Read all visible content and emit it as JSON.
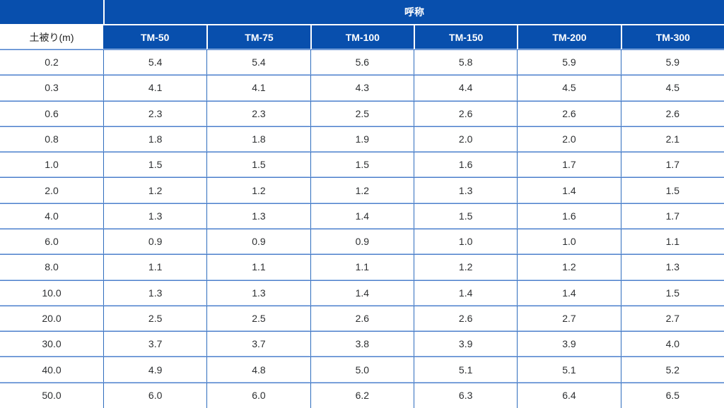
{
  "table": {
    "group_header": "呼称",
    "row_header_label": "土被り(m)",
    "columns": [
      "TM-50",
      "TM-75",
      "TM-100",
      "TM-150",
      "TM-200",
      "TM-300"
    ],
    "rows": [
      {
        "depth": "0.2",
        "values": [
          "5.4",
          "5.4",
          "5.6",
          "5.8",
          "5.9",
          "5.9"
        ]
      },
      {
        "depth": "0.3",
        "values": [
          "4.1",
          "4.1",
          "4.3",
          "4.4",
          "4.5",
          "4.5"
        ]
      },
      {
        "depth": "0.6",
        "values": [
          "2.3",
          "2.3",
          "2.5",
          "2.6",
          "2.6",
          "2.6"
        ]
      },
      {
        "depth": "0.8",
        "values": [
          "1.8",
          "1.8",
          "1.9",
          "2.0",
          "2.0",
          "2.1"
        ]
      },
      {
        "depth": "1.0",
        "values": [
          "1.5",
          "1.5",
          "1.5",
          "1.6",
          "1.7",
          "1.7"
        ]
      },
      {
        "depth": "2.0",
        "values": [
          "1.2",
          "1.2",
          "1.2",
          "1.3",
          "1.4",
          "1.5"
        ]
      },
      {
        "depth": "4.0",
        "values": [
          "1.3",
          "1.3",
          "1.4",
          "1.5",
          "1.6",
          "1.7"
        ]
      },
      {
        "depth": "6.0",
        "values": [
          "0.9",
          "0.9",
          "0.9",
          "1.0",
          "1.0",
          "1.1"
        ]
      },
      {
        "depth": "8.0",
        "values": [
          "1.1",
          "1.1",
          "1.1",
          "1.2",
          "1.2",
          "1.3"
        ]
      },
      {
        "depth": "10.0",
        "values": [
          "1.3",
          "1.3",
          "1.4",
          "1.4",
          "1.4",
          "1.5"
        ]
      },
      {
        "depth": "20.0",
        "values": [
          "2.5",
          "2.5",
          "2.6",
          "2.6",
          "2.7",
          "2.7"
        ]
      },
      {
        "depth": "30.0",
        "values": [
          "3.7",
          "3.7",
          "3.8",
          "3.9",
          "3.9",
          "4.0"
        ]
      },
      {
        "depth": "40.0",
        "values": [
          "4.9",
          "4.8",
          "5.0",
          "5.1",
          "5.1",
          "5.2"
        ]
      },
      {
        "depth": "50.0",
        "values": [
          "6.0",
          "6.0",
          "6.2",
          "6.3",
          "6.4",
          "6.5"
        ]
      }
    ]
  },
  "colors": {
    "header_background": "#084fad",
    "header_text": "#ffffff",
    "border_dark": "#2e6cbd",
    "border_light": "#a6c3ea",
    "data_text": "#2d2f31"
  }
}
